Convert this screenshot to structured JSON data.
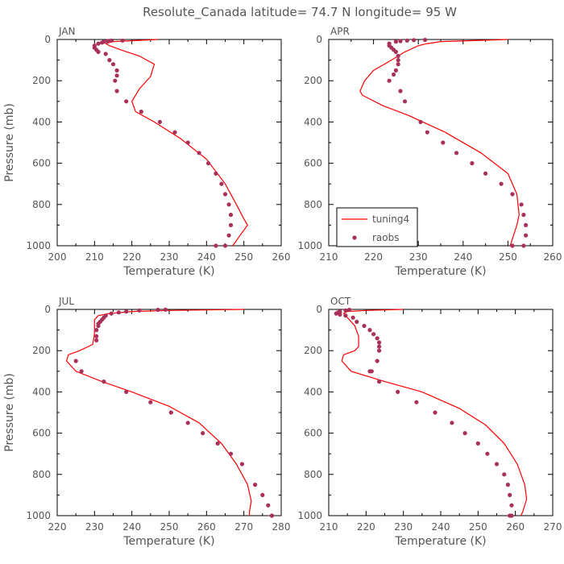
{
  "title": "Resolute_Canada   latitude= 74.7 N longitude= 95 W",
  "legend": {
    "entries": [
      "tuning4",
      "raobs"
    ],
    "placement": "bottom-left of APR panel"
  },
  "colors": {
    "model_line": "#ff0000",
    "obs_marker": "#a8305a",
    "axes": "#000000",
    "text": "#555555"
  },
  "chart_data": [
    {
      "type": "line",
      "panel": "JAN",
      "xlabel": "Temperature (K)",
      "ylabel": "Pressure (mb)",
      "xlim": [
        200,
        260
      ],
      "ylim": [
        1000,
        0
      ],
      "xticks": [
        200,
        210,
        220,
        230,
        240,
        250,
        260
      ],
      "yticks": [
        0,
        200,
        400,
        600,
        800,
        1000
      ],
      "series": [
        {
          "name": "tuning4",
          "kind": "line",
          "x": [
            227,
            215,
            213,
            214,
            217,
            222,
            226,
            225,
            222,
            220,
            221,
            226,
            233,
            240,
            245,
            248,
            250,
            251,
            249,
            247
          ],
          "y": [
            0,
            10,
            20,
            30,
            50,
            80,
            120,
            180,
            240,
            300,
            350,
            400,
            480,
            580,
            700,
            800,
            870,
            900,
            950,
            1000
          ]
        },
        {
          "name": "raobs",
          "kind": "scatter",
          "x": [
            217.5,
            214.5,
            213.5,
            212.5,
            212,
            211,
            210,
            210,
            210.5,
            211,
            213,
            214,
            215,
            216,
            216,
            215.5,
            216,
            218.5,
            222.5,
            227.5,
            231.5,
            235,
            238,
            240.5,
            242.5,
            244,
            245,
            246,
            246.5,
            246.5,
            246,
            245,
            242.5
          ],
          "y": [
            5,
            5,
            8,
            10,
            15,
            20,
            30,
            40,
            50,
            60,
            70,
            100,
            120,
            150,
            175,
            200,
            250,
            300,
            350,
            400,
            450,
            500,
            550,
            600,
            650,
            700,
            750,
            800,
            850,
            900,
            950,
            1000,
            1000
          ]
        }
      ]
    },
    {
      "type": "line",
      "panel": "APR",
      "xlabel": "Temperature (K)",
      "ylabel": "",
      "xlim": [
        210,
        260
      ],
      "ylim": [
        1000,
        0
      ],
      "xticks": [
        210,
        220,
        230,
        240,
        250,
        260
      ],
      "yticks": [
        0,
        200,
        400,
        600,
        800,
        1000
      ],
      "series": [
        {
          "name": "tuning4",
          "kind": "line",
          "x": [
            250,
            235,
            232,
            230,
            227,
            224,
            220,
            218,
            217,
            217.5,
            222,
            228,
            236,
            244,
            250,
            252,
            252.5,
            252,
            250.5
          ],
          "y": [
            0,
            10,
            20,
            30,
            60,
            100,
            150,
            200,
            250,
            270,
            320,
            370,
            450,
            550,
            650,
            750,
            850,
            900,
            1000
          ]
        },
        {
          "name": "raobs",
          "kind": "scatter",
          "x": [
            231.5,
            229,
            227.5,
            226,
            225,
            223.5,
            223.5,
            224,
            224.5,
            225,
            225.5,
            225.5,
            225.5,
            225,
            224.5,
            223.5,
            226,
            227,
            230.5,
            232,
            235.5,
            238.5,
            242,
            245,
            248.5,
            251,
            253,
            253.5,
            254,
            254,
            253.5,
            251
          ],
          "y": [
            2,
            3,
            5,
            8,
            10,
            20,
            30,
            40,
            50,
            60,
            80,
            100,
            120,
            150,
            170,
            200,
            250,
            300,
            400,
            450,
            500,
            550,
            600,
            650,
            700,
            750,
            800,
            850,
            900,
            950,
            1000,
            1000
          ]
        }
      ]
    },
    {
      "type": "line",
      "panel": "JUL",
      "xlabel": "Temperature (K)",
      "ylabel": "Pressure (mb)",
      "xlim": [
        220,
        280
      ],
      "ylim": [
        1000,
        0
      ],
      "xticks": [
        220,
        230,
        240,
        250,
        260,
        270,
        280
      ],
      "yticks": [
        0,
        200,
        400,
        600,
        800,
        1000
      ],
      "series": [
        {
          "name": "tuning4",
          "kind": "line",
          "x": [
            270,
            250,
            240,
            234,
            231,
            230,
            230,
            230,
            229.5,
            226,
            223,
            222.5,
            225,
            232,
            240,
            250,
            258,
            264,
            268,
            271,
            272,
            271.5,
            271.5
          ],
          "y": [
            0,
            5,
            10,
            20,
            30,
            50,
            80,
            120,
            170,
            200,
            220,
            250,
            300,
            350,
            400,
            470,
            550,
            650,
            750,
            850,
            930,
            980,
            1000
          ]
        },
        {
          "name": "raobs",
          "kind": "scatter",
          "x": [
            249,
            247,
            242,
            238.5,
            236.5,
            234.5,
            233,
            232.5,
            232,
            231.5,
            231,
            231,
            230.5,
            230.5,
            230.5,
            225,
            226.5,
            232.5,
            238.5,
            245,
            250.5,
            255,
            259,
            263,
            266.5,
            269.5,
            273,
            275,
            276.5,
            277.5,
            277.5
          ],
          "y": [
            1,
            2,
            5,
            10,
            15,
            20,
            30,
            40,
            50,
            60,
            70,
            80,
            100,
            130,
            150,
            250,
            300,
            350,
            400,
            450,
            500,
            550,
            600,
            650,
            700,
            750,
            850,
            900,
            950,
            1000,
            1000
          ]
        }
      ]
    },
    {
      "type": "line",
      "panel": "OCT",
      "xlabel": "Temperature (K)",
      "ylabel": "",
      "xlim": [
        210,
        270
      ],
      "ylim": [
        1000,
        0
      ],
      "xticks": [
        210,
        220,
        230,
        240,
        250,
        260,
        270
      ],
      "yticks": [
        0,
        200,
        400,
        600,
        800,
        1000
      ],
      "series": [
        {
          "name": "tuning4",
          "kind": "line",
          "x": [
            230,
            220,
            215,
            214,
            215,
            217,
            218,
            218,
            217,
            214,
            213.5,
            216,
            225,
            235,
            245,
            252,
            257,
            260.5,
            262.5,
            263,
            262,
            261.5
          ],
          "y": [
            0,
            5,
            10,
            20,
            40,
            80,
            130,
            180,
            200,
            220,
            250,
            300,
            350,
            400,
            480,
            560,
            650,
            750,
            850,
            920,
            980,
            1000
          ]
        },
        {
          "name": "raobs",
          "kind": "scatter",
          "x": [
            215.5,
            214.5,
            213,
            212.5,
            212,
            213,
            214.5,
            216.5,
            217.5,
            219.5,
            221,
            222,
            223,
            223.5,
            223.5,
            223.5,
            223,
            221.5,
            221,
            223.5,
            228.5,
            233.5,
            238.5,
            243,
            246.5,
            250,
            252.5,
            255,
            257,
            258,
            258.5,
            259,
            259,
            258.5
          ],
          "y": [
            2,
            5,
            10,
            15,
            20,
            25,
            30,
            40,
            60,
            80,
            100,
            120,
            140,
            160,
            180,
            200,
            250,
            300,
            300,
            350,
            400,
            450,
            500,
            550,
            600,
            650,
            700,
            750,
            800,
            850,
            900,
            950,
            1000,
            1000
          ]
        }
      ]
    }
  ]
}
